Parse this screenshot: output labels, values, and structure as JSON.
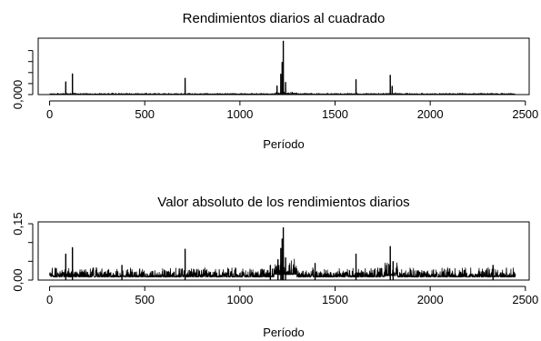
{
  "chart_data": [
    {
      "type": "line",
      "title": "Rendimientos diarios al cuadrado",
      "xlabel": "Período",
      "ylabel": "",
      "xlim": [
        -60,
        2520
      ],
      "ylim": [
        0,
        0.0205
      ],
      "xticks": [
        0,
        500,
        1000,
        1500,
        2000,
        2500
      ],
      "xtick_labels": [
        "0",
        "500",
        "1000",
        "1500",
        "2000",
        "2500"
      ],
      "yticks": [
        0,
        0.004,
        0.008,
        0.012,
        0.016
      ],
      "ytick_labels": [
        "0,000",
        "",
        "",
        "",
        ""
      ],
      "n_points": 2450,
      "baseline": 0.00012,
      "noise_level": 0.0004,
      "spikes": [
        {
          "x": 85,
          "y": 0.0047
        },
        {
          "x": 120,
          "y": 0.0076
        },
        {
          "x": 712,
          "y": 0.006
        },
        {
          "x": 1195,
          "y": 0.0032
        },
        {
          "x": 1215,
          "y": 0.0075
        },
        {
          "x": 1222,
          "y": 0.0118
        },
        {
          "x": 1228,
          "y": 0.0195
        },
        {
          "x": 1240,
          "y": 0.0045
        },
        {
          "x": 1610,
          "y": 0.0055
        },
        {
          "x": 1790,
          "y": 0.0071
        },
        {
          "x": 1800,
          "y": 0.0031
        }
      ]
    },
    {
      "type": "line",
      "title": "Valor absoluto de los rendimientos diarios",
      "xlabel": "Período",
      "ylabel": "",
      "xlim": [
        -60,
        2520
      ],
      "ylim": [
        0,
        0.155
      ],
      "xticks": [
        0,
        500,
        1000,
        1500,
        2000,
        2500
      ],
      "xtick_labels": [
        "0",
        "500",
        "1000",
        "1500",
        "2000",
        "2500"
      ],
      "yticks": [
        0,
        0.05,
        0.1,
        0.15
      ],
      "ytick_labels": [
        "0,00",
        "",
        "",
        "0,15"
      ],
      "n_points": 2450,
      "baseline": 0.008,
      "noise_level": 0.025,
      "spikes": [
        {
          "x": 85,
          "y": 0.07
        },
        {
          "x": 120,
          "y": 0.087
        },
        {
          "x": 380,
          "y": 0.04
        },
        {
          "x": 712,
          "y": 0.083
        },
        {
          "x": 1160,
          "y": 0.04
        },
        {
          "x": 1200,
          "y": 0.055
        },
        {
          "x": 1215,
          "y": 0.085
        },
        {
          "x": 1222,
          "y": 0.11
        },
        {
          "x": 1228,
          "y": 0.14
        },
        {
          "x": 1240,
          "y": 0.06
        },
        {
          "x": 1395,
          "y": 0.045
        },
        {
          "x": 1610,
          "y": 0.07
        },
        {
          "x": 1790,
          "y": 0.09
        },
        {
          "x": 1805,
          "y": 0.05
        },
        {
          "x": 2330,
          "y": 0.04
        }
      ]
    }
  ]
}
